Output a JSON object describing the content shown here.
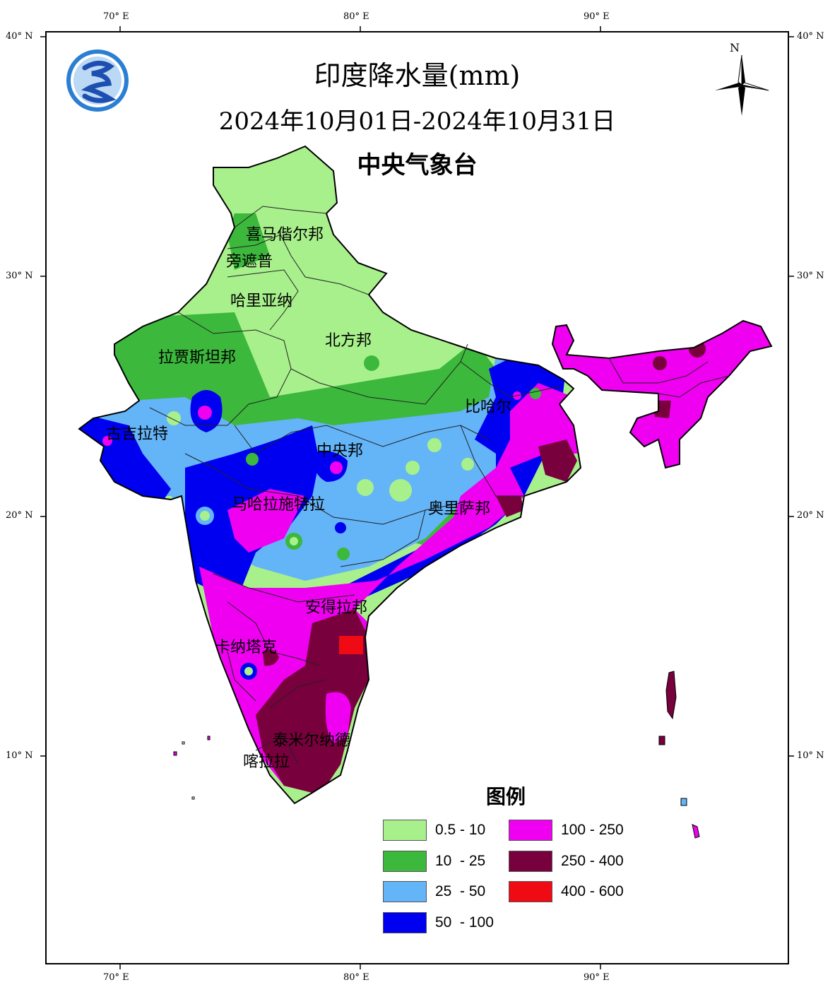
{
  "title": "印度降水量(mm)",
  "date_range": "2024年10月01日-2024年10月31日",
  "agency": "中央气象台",
  "north_label": "N",
  "graticule": {
    "lon_labels": [
      "70° E",
      "80° E",
      "90° E"
    ],
    "lat_labels": [
      "40° N",
      "30° N",
      "20° N",
      "10° N"
    ]
  },
  "states": [
    {
      "name": "喜马偕尔邦"
    },
    {
      "name": "旁遮普"
    },
    {
      "name": "哈里亚纳"
    },
    {
      "name": "北方邦"
    },
    {
      "name": "拉贾斯坦邦"
    },
    {
      "name": "比哈尔"
    },
    {
      "name": "古吉拉特"
    },
    {
      "name": "中央邦"
    },
    {
      "name": "马哈拉施特拉"
    },
    {
      "name": "奥里萨邦"
    },
    {
      "name": "安得拉邦"
    },
    {
      "name": "卡纳塔克"
    },
    {
      "name": "泰米尔纳德"
    },
    {
      "name": "喀拉拉"
    }
  ],
  "legend": {
    "title": "图例",
    "items": [
      {
        "label": "0.5 - 10",
        "color": "#a8f08c"
      },
      {
        "label": "10  - 25",
        "color": "#3cb83c"
      },
      {
        "label": "25  - 50",
        "color": "#64b4f8"
      },
      {
        "label": "50  - 100",
        "color": "#0000f0"
      },
      {
        "label": "100 - 250",
        "color": "#f000f0"
      },
      {
        "label": "250 - 400",
        "color": "#78003c"
      },
      {
        "label": "400 - 600",
        "color": "#f00a14"
      }
    ]
  }
}
